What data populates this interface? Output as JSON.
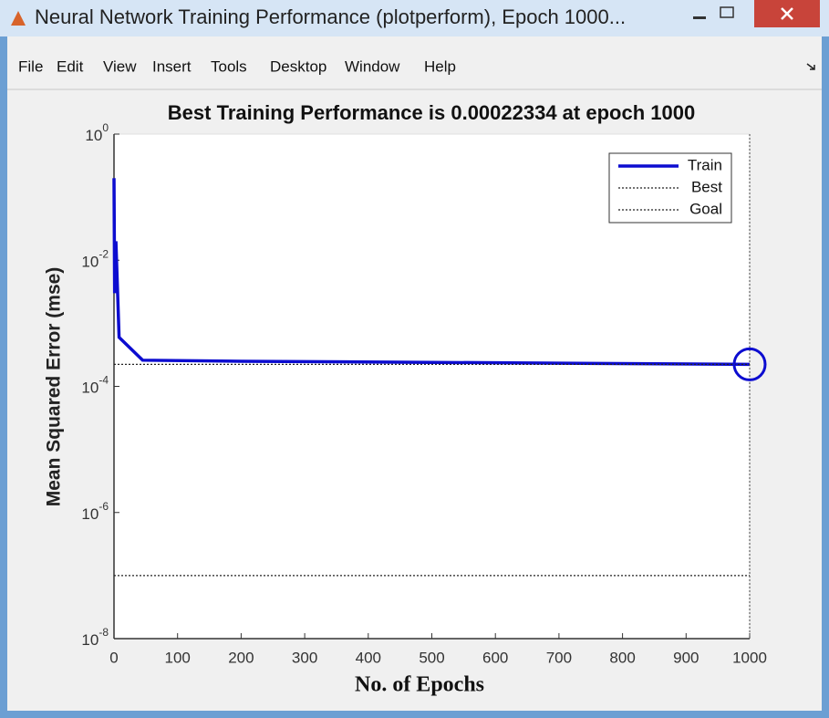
{
  "window": {
    "title": "Neural Network Training Performance (plotperform), Epoch 1000...",
    "menu": [
      "File",
      "Edit",
      "View",
      "Insert",
      "Tools",
      "Desktop",
      "Window",
      "Help"
    ]
  },
  "chart_data": {
    "type": "line",
    "title": "Best Training Performance is 0.00022334 at epoch 1000",
    "xlabel": "No. of Epochs",
    "ylabel": "Mean Squared Error  (mse)",
    "xlim": [
      0,
      1000
    ],
    "ylim": [
      1e-08,
      1
    ],
    "log_y": true,
    "xticks": [
      0,
      100,
      200,
      300,
      400,
      500,
      600,
      700,
      800,
      900,
      1000
    ],
    "yticks": [
      {
        "value": 1e-08,
        "label": "10",
        "exponent": "-8"
      },
      {
        "value": 1e-06,
        "label": "10",
        "exponent": "-6"
      },
      {
        "value": 0.0001,
        "label": "10",
        "exponent": "-4"
      },
      {
        "value": 0.01,
        "label": "10",
        "exponent": "-2"
      },
      {
        "value": 1,
        "label": "10",
        "exponent": "0"
      }
    ],
    "legend": "upper right",
    "series": [
      {
        "name": "Train",
        "color": "#0c0cd0",
        "style": "solid",
        "x": [
          0,
          1,
          3,
          8,
          45,
          200,
          500,
          1000
        ],
        "values": [
          0.2,
          0.003,
          0.02,
          0.0006,
          0.00026,
          0.00025,
          0.00024,
          0.00022334
        ]
      },
      {
        "name": "Best",
        "color": "#222222",
        "style": "dotted",
        "x": [
          0,
          1000
        ],
        "values": [
          0.00022334,
          0.00022334
        ]
      },
      {
        "name": "Goal",
        "color": "#222222",
        "style": "dotted",
        "x": [
          0,
          1000
        ],
        "values": [
          1e-07,
          1e-07
        ]
      }
    ],
    "best_point": {
      "x": 1000,
      "y": 0.00022334,
      "color": "#0c0cd0"
    }
  }
}
